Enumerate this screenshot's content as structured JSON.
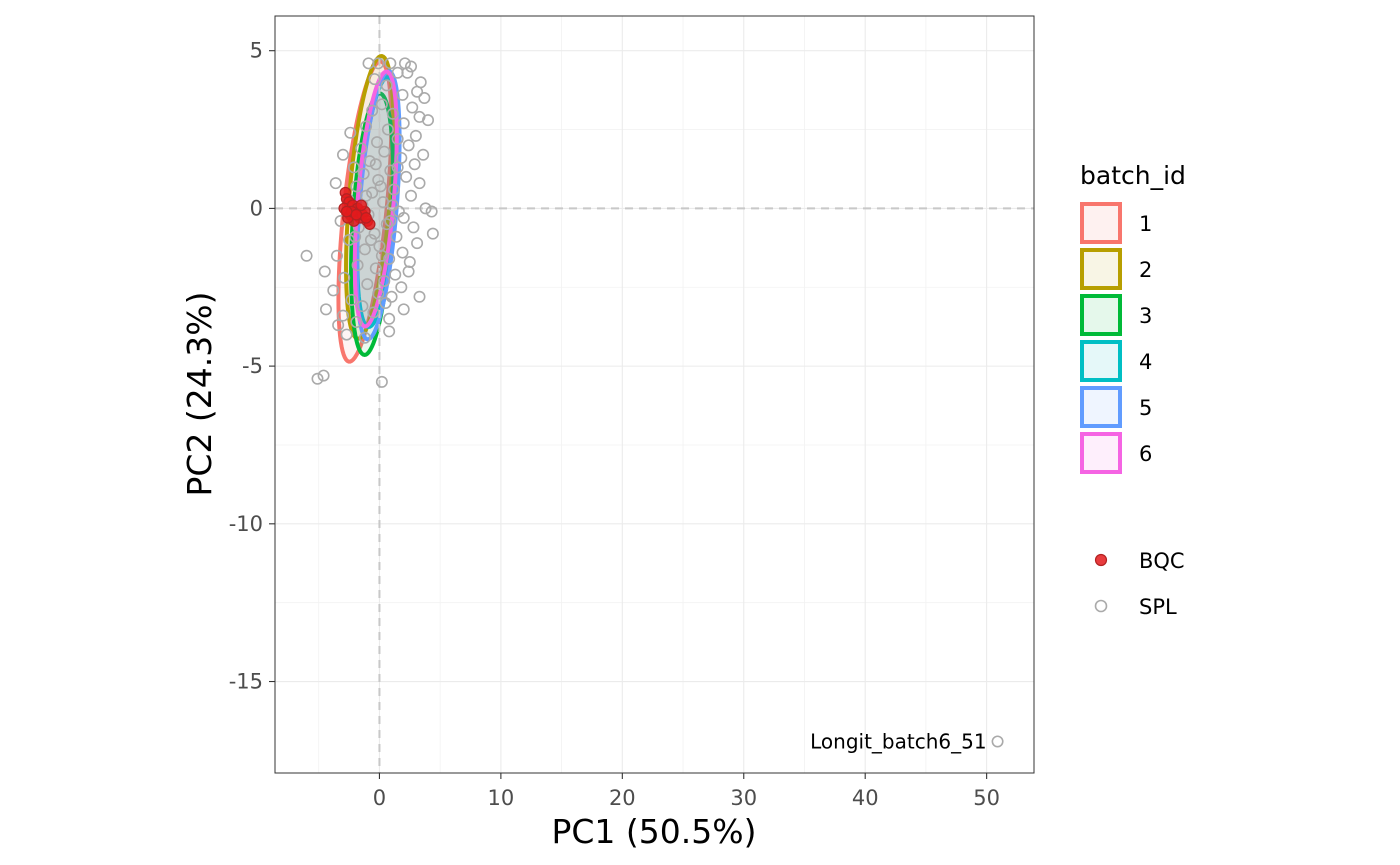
{
  "chart_data": {
    "type": "scatter",
    "title": "",
    "xlabel": "PC1 (50.5%)",
    "ylabel": "PC2 (24.3%)",
    "xlim": [
      -8.6,
      53.9
    ],
    "ylim": [
      -17.9,
      6.1
    ],
    "x_ticks": [
      0,
      10,
      20,
      30,
      40,
      50
    ],
    "y_ticks": [
      5,
      0,
      -5,
      -10,
      -15
    ],
    "x_tick_labels": [
      "0",
      "10",
      "20",
      "30",
      "40",
      "50"
    ],
    "y_tick_labels": [
      "5",
      "0",
      "-5",
      "-10",
      "-15"
    ],
    "grid": true,
    "reference_lines": {
      "x": 0,
      "y": 0,
      "style": "dashed"
    },
    "legend_position": "right",
    "ellipse_legend": {
      "title": "batch_id",
      "items": [
        {
          "label": "1",
          "color": "#F8766D"
        },
        {
          "label": "2",
          "color": "#B79F00"
        },
        {
          "label": "3",
          "color": "#00BA38"
        },
        {
          "label": "4",
          "color": "#00BFC4"
        },
        {
          "label": "5",
          "color": "#619CFF"
        },
        {
          "label": "6",
          "color": "#F564E3"
        }
      ]
    },
    "point_legend": {
      "items": [
        {
          "label": "BQC",
          "color": "#E41A1C",
          "filled": true
        },
        {
          "label": "SPL",
          "color": "#AAAAAA",
          "filled": false
        }
      ]
    },
    "ellipses": [
      {
        "batch_id": "1",
        "center": [
          -1.2,
          -0.1
        ],
        "semi_major": 4.95,
        "semi_minor": 1.7,
        "angle_deg": 73
      },
      {
        "batch_id": "2",
        "center": [
          -0.8,
          0.35
        ],
        "semi_major": 4.6,
        "semi_minor": 1.65,
        "angle_deg": 76
      },
      {
        "batch_id": "3",
        "center": [
          -0.6,
          -0.5
        ],
        "semi_major": 4.2,
        "semi_minor": 1.6,
        "angle_deg": 80
      },
      {
        "batch_id": "4",
        "center": [
          -0.1,
          0.2
        ],
        "semi_major": 4.05,
        "semi_minor": 1.5,
        "angle_deg": 77
      },
      {
        "batch_id": "5",
        "center": [
          -0.1,
          0.1
        ],
        "semi_major": 4.35,
        "semi_minor": 1.5,
        "angle_deg": 77
      },
      {
        "batch_id": "6",
        "center": [
          -0.3,
          0.3
        ],
        "semi_major": 4.15,
        "semi_minor": 1.45,
        "angle_deg": 76
      }
    ],
    "bqc_points": [
      [
        -2.8,
        0.5
      ],
      [
        -2.7,
        0.3
      ],
      [
        -2.5,
        0.2
      ],
      [
        -2.9,
        0.0
      ],
      [
        -2.4,
        -0.2
      ],
      [
        -2.2,
        0.1
      ],
      [
        -2.0,
        -0.1
      ],
      [
        -1.8,
        0.0
      ],
      [
        -1.6,
        -0.3
      ],
      [
        -2.1,
        -0.4
      ],
      [
        -2.6,
        -0.3
      ],
      [
        -1.4,
        -0.2
      ],
      [
        -1.2,
        -0.1
      ],
      [
        -1.0,
        -0.4
      ],
      [
        -0.8,
        -0.5
      ],
      [
        -2.3,
        -0.1
      ],
      [
        -1.9,
        -0.2
      ],
      [
        -1.5,
        0.1
      ],
      [
        -2.7,
        -0.1
      ],
      [
        -1.1,
        -0.3
      ]
    ],
    "spl_points": [
      [
        -0.9,
        4.6
      ],
      [
        -0.1,
        4.6
      ],
      [
        0.9,
        4.6
      ],
      [
        2.1,
        4.6
      ],
      [
        2.6,
        4.5
      ],
      [
        1.5,
        4.3
      ],
      [
        -0.4,
        4.1
      ],
      [
        3.4,
        4.0
      ],
      [
        2.3,
        4.3
      ],
      [
        0.6,
        3.9
      ],
      [
        3.1,
        3.7
      ],
      [
        1.9,
        3.6
      ],
      [
        3.7,
        3.5
      ],
      [
        0.2,
        3.3
      ],
      [
        2.7,
        3.2
      ],
      [
        -0.6,
        3.1
      ],
      [
        1.1,
        3.0
      ],
      [
        3.3,
        2.9
      ],
      [
        4.0,
        2.8
      ],
      [
        2.0,
        2.7
      ],
      [
        -1.1,
        2.6
      ],
      [
        0.7,
        2.5
      ],
      [
        -2.4,
        2.4
      ],
      [
        3.0,
        2.3
      ],
      [
        1.5,
        2.2
      ],
      [
        -0.2,
        2.1
      ],
      [
        2.4,
        2.0
      ],
      [
        -1.5,
        1.9
      ],
      [
        0.4,
        1.8
      ],
      [
        3.6,
        1.7
      ],
      [
        -3.0,
        1.7
      ],
      [
        1.8,
        1.6
      ],
      [
        -0.8,
        1.5
      ],
      [
        2.9,
        1.4
      ],
      [
        -2.1,
        1.3
      ],
      [
        0.9,
        1.2
      ],
      [
        -1.3,
        1.1
      ],
      [
        2.2,
        1.0
      ],
      [
        -0.1,
        0.9
      ],
      [
        3.3,
        0.8
      ],
      [
        -3.6,
        0.8
      ],
      [
        -1.9,
        0.7
      ],
      [
        1.2,
        0.6
      ],
      [
        -0.6,
        0.5
      ],
      [
        2.6,
        0.4
      ],
      [
        -2.6,
        0.3
      ],
      [
        0.3,
        0.2
      ],
      [
        -1.4,
        0.1
      ],
      [
        3.8,
        0.0
      ],
      [
        4.3,
        -0.1
      ],
      [
        1.6,
        -0.1
      ],
      [
        -0.9,
        -0.2
      ],
      [
        2.0,
        -0.3
      ],
      [
        -3.2,
        -0.4
      ],
      [
        0.6,
        -0.5
      ],
      [
        -1.7,
        -0.6
      ],
      [
        2.8,
        -0.6
      ],
      [
        4.4,
        -0.8
      ],
      [
        -0.4,
        -0.8
      ],
      [
        1.4,
        -0.9
      ],
      [
        -2.5,
        -1.0
      ],
      [
        3.1,
        -1.1
      ],
      [
        0.0,
        -1.2
      ],
      [
        -1.2,
        -1.3
      ],
      [
        1.9,
        -1.4
      ],
      [
        -6.0,
        -1.5
      ],
      [
        -3.5,
        -1.5
      ],
      [
        0.8,
        -1.6
      ],
      [
        2.5,
        -1.7
      ],
      [
        -1.8,
        -1.8
      ],
      [
        -0.3,
        -1.9
      ],
      [
        2.4,
        -2.0
      ],
      [
        -4.5,
        -2.0
      ],
      [
        1.3,
        -2.1
      ],
      [
        -2.9,
        -2.2
      ],
      [
        0.4,
        -2.3
      ],
      [
        -1.0,
        -2.4
      ],
      [
        1.8,
        -2.5
      ],
      [
        -3.8,
        -2.6
      ],
      [
        -0.1,
        -2.7
      ],
      [
        1.0,
        -2.8
      ],
      [
        3.3,
        -2.8
      ],
      [
        -2.3,
        -2.9
      ],
      [
        0.5,
        -3.0
      ],
      [
        -4.4,
        -3.2
      ],
      [
        -1.4,
        -3.1
      ],
      [
        2.0,
        -3.2
      ],
      [
        -0.5,
        -3.3
      ],
      [
        -3.0,
        -3.4
      ],
      [
        0.8,
        -3.5
      ],
      [
        -1.9,
        -3.6
      ],
      [
        -3.4,
        -3.7
      ],
      [
        0.8,
        -3.9
      ],
      [
        -2.7,
        -4.0
      ],
      [
        -1.2,
        -4.1
      ],
      [
        -5.1,
        -5.4
      ],
      [
        -4.6,
        -5.3
      ],
      [
        0.2,
        -5.5
      ],
      [
        -0.3,
        1.4
      ],
      [
        0.1,
        0.7
      ],
      [
        0.9,
        -0.4
      ],
      [
        -0.7,
        -1.0
      ],
      [
        1.5,
        1.3
      ],
      [
        -2.0,
        -0.9
      ],
      [
        0.2,
        -1.5
      ],
      [
        -1.1,
        0.4
      ],
      [
        1.1,
        0.1
      ],
      [
        50.9,
        -16.9
      ]
    ],
    "annotations": [
      {
        "text": "Longit_batch6_51",
        "x": 50.9,
        "y": -16.9
      }
    ]
  }
}
